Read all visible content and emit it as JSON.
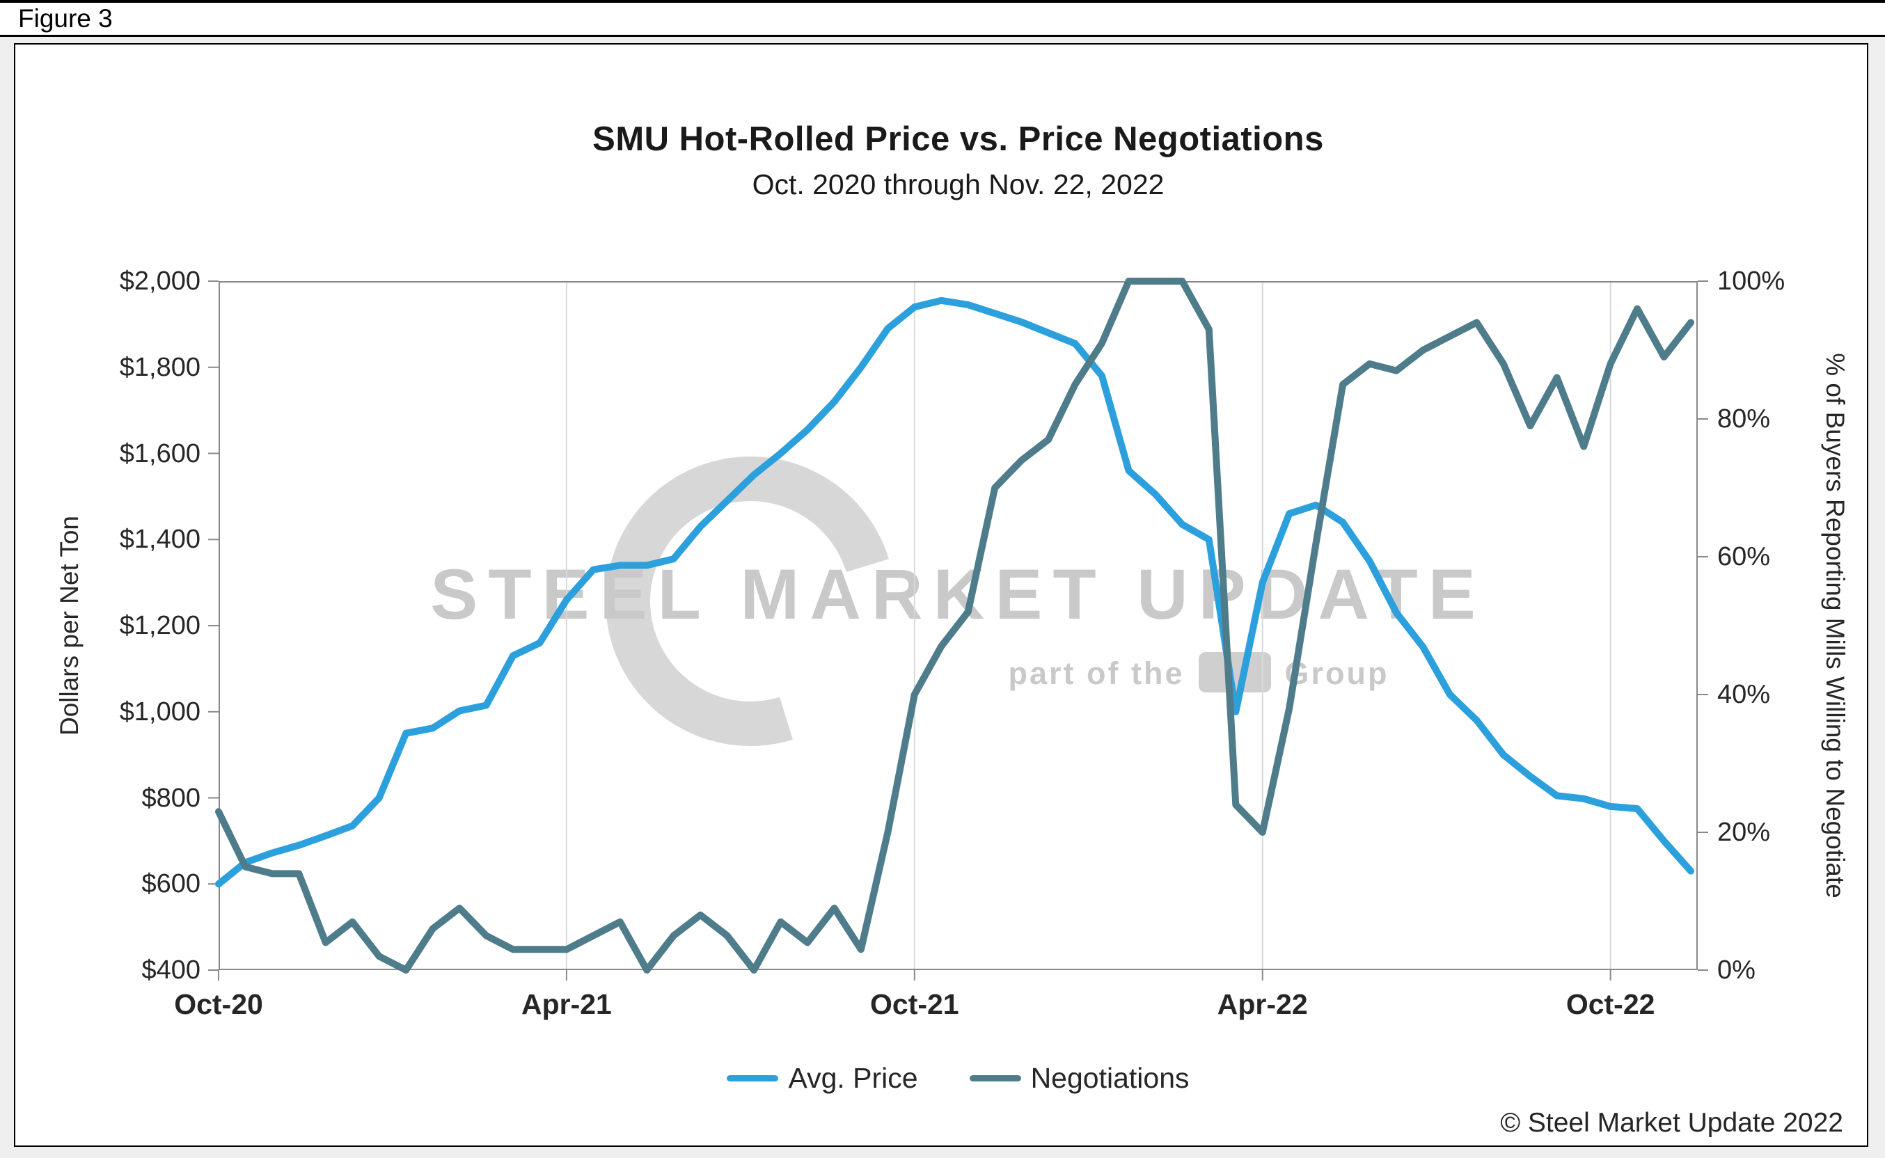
{
  "figure_label": "Figure 3",
  "watermark": {
    "line1": "STEEL MARKET UPDATE",
    "line2_prefix": "part of the",
    "line2_suffix": "Group"
  },
  "footer": {
    "copyright": "© Steel Market Update 2022"
  },
  "chart_data": {
    "type": "line",
    "title": "SMU Hot-Rolled Price vs. Price Negotiations",
    "subtitle": "Oct. 2020 through Nov. 22, 2022",
    "grid": "vertical-only",
    "legend_position": "bottom-center",
    "n_points": 56,
    "x_tick_labels": [
      "Oct-20",
      "Apr-21",
      "Oct-21",
      "Apr-22",
      "Oct-22"
    ],
    "x_tick_indices": [
      0,
      13,
      26,
      39,
      52
    ],
    "x_note": "bi-weekly observations, Oct 2020 through Nov 22 2022",
    "left_axis": {
      "label": "Dollars per Net Ton",
      "min": 400,
      "max": 2000,
      "step": 200,
      "tick_labels": [
        "$400",
        "$600",
        "$800",
        "$1,000",
        "$1,200",
        "$1,400",
        "$1,600",
        "$1,800",
        "$2,000"
      ]
    },
    "right_axis": {
      "label": "% of Buyers Reporting Mills Willing to Negotiate",
      "min": 0,
      "max": 100,
      "step": 20,
      "tick_labels": [
        "0%",
        "20%",
        "40%",
        "60%",
        "80%",
        "100%"
      ]
    },
    "series": [
      {
        "name": "Avg. Price",
        "axis": "left",
        "color": "#2BA0DC",
        "values": [
          600,
          650,
          672,
          690,
          712,
          735,
          800,
          950,
          962,
          1002,
          1015,
          1130,
          1160,
          1260,
          1330,
          1340,
          1340,
          1355,
          1430,
          1490,
          1550,
          1600,
          1655,
          1720,
          1800,
          1890,
          1940,
          1955,
          1945,
          1925,
          1905,
          1880,
          1855,
          1780,
          1560,
          1505,
          1435,
          1400,
          1000,
          1300,
          1460,
          1480,
          1440,
          1350,
          1230,
          1150,
          1040,
          980,
          900,
          850,
          805,
          798,
          780,
          775,
          700,
          630
        ]
      },
      {
        "name": "Negotiations",
        "axis": "right",
        "color": "#4E7C8B",
        "values": [
          23,
          15,
          14,
          14,
          4,
          7,
          2,
          0,
          6,
          9,
          5,
          3,
          3,
          3,
          5,
          7,
          0,
          5,
          8,
          5,
          0,
          7,
          4,
          9,
          3,
          20,
          40,
          47,
          52,
          70,
          74,
          77,
          85,
          91,
          100,
          100,
          100,
          93,
          24,
          20,
          38,
          62,
          85,
          88,
          87,
          90,
          92,
          94,
          88,
          79,
          86,
          76,
          88,
          96,
          89,
          94
        ]
      }
    ]
  }
}
